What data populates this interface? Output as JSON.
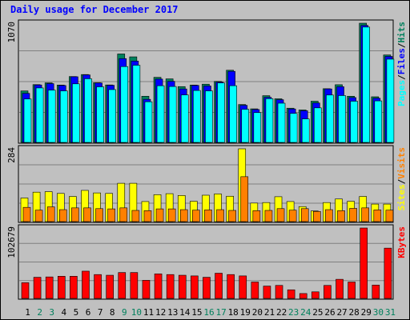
{
  "chart_data": {
    "type": "bar",
    "title": "Daily usage for December 2017",
    "categories": [
      "1",
      "2",
      "3",
      "4",
      "5",
      "6",
      "7",
      "8",
      "9",
      "10",
      "11",
      "12",
      "13",
      "14",
      "15",
      "16",
      "17",
      "18",
      "19",
      "20",
      "21",
      "22",
      "23",
      "24",
      "25",
      "26",
      "27",
      "28",
      "29",
      "30",
      "31"
    ],
    "weekend_days": [
      "2",
      "3",
      "9",
      "10",
      "16",
      "17",
      "23",
      "24",
      "30",
      "31"
    ],
    "colors": {
      "hits": "#00805c",
      "files": "#0000ff",
      "pages": "#00ffff",
      "visits": "#ff8000",
      "sites": "#ffff00",
      "kbytes": "#ff0000",
      "title": "#0000ff",
      "weekday_label": "#000000",
      "weekend_label": "#00805c",
      "plot_bg": "#c0c0c0"
    },
    "panels": [
      {
        "name": "hits-files-pages",
        "max_label": "1070",
        "ymax": 1070,
        "legend": [
          "Pages",
          "/",
          "Files",
          "/",
          "Hits"
        ],
        "legend_colors": [
          "#00ffff",
          "#000000",
          "#0000ff",
          "#000000",
          "#00805c"
        ],
        "series": [
          {
            "name": "Hits",
            "values": [
              458,
              515,
              531,
              511,
              588,
              606,
              532,
              512,
              792,
              766,
              410,
              581,
              567,
              497,
              511,
              519,
              544,
              645,
              335,
              296,
              415,
              387,
              302,
              286,
              365,
              478,
              514,
              410,
              1070,
              405,
              783
            ]
          },
          {
            "name": "Files",
            "values": [
              436,
              512,
              524,
              507,
              586,
              603,
              530,
              509,
              750,
              728,
              382,
              565,
              545,
              476,
              508,
              503,
              538,
              635,
              328,
              290,
              400,
              379,
              295,
              279,
              349,
              476,
              496,
              398,
              1050,
              392,
              770
            ]
          },
          {
            "name": "Pages",
            "values": [
              385,
              485,
              465,
              458,
              522,
              568,
              495,
              470,
              678,
              690,
              360,
              505,
              498,
              422,
              462,
              458,
              530,
              505,
              292,
              262,
              388,
              347,
              255,
              205,
              305,
              421,
              416,
              365,
              1035,
              368,
              745
            ]
          }
        ]
      },
      {
        "name": "visits-sites",
        "max_label": "284",
        "ymax": 284,
        "legend": [
          "Sites",
          "/",
          "Visits"
        ],
        "legend_colors": [
          "#ffff00",
          "#000000",
          "#ff8000"
        ],
        "series": [
          {
            "name": "Visits",
            "values": [
              53,
              42,
              55,
              44,
              51,
              51,
              48,
              47,
              51,
              41,
              40,
              47,
              47,
              44,
              42,
              43,
              44,
              41,
              174,
              40,
              41,
              48,
              42,
              48,
              37,
              44,
              40,
              49,
              51,
              43,
              42
            ]
          },
          {
            "name": "Sites",
            "values": [
              90,
              113,
              115,
              108,
              96,
              120,
              110,
              108,
              148,
              148,
              76,
              103,
              107,
              100,
              77,
              101,
              106,
              97,
              284,
              70,
              72,
              95,
              76,
              56,
              39,
              72,
              86,
              77,
              96,
              66,
              66
            ]
          }
        ]
      },
      {
        "name": "kbytes",
        "max_label": "102679",
        "ymax": 102679,
        "legend": [
          "KBytes"
        ],
        "legend_colors": [
          "#ff0000"
        ],
        "series": [
          {
            "name": "KBytes",
            "values": [
              22000,
              30000,
              30500,
              31500,
              31500,
              39000,
              34000,
              33000,
              37000,
              37000,
              25500,
              35000,
              34000,
              33000,
              32000,
              30000,
              36000,
              34000,
              32000,
              23000,
              17000,
              18000,
              11500,
              6000,
              8500,
              18000,
              27000,
              23000,
              102679,
              18500,
              73000
            ]
          }
        ]
      }
    ]
  }
}
